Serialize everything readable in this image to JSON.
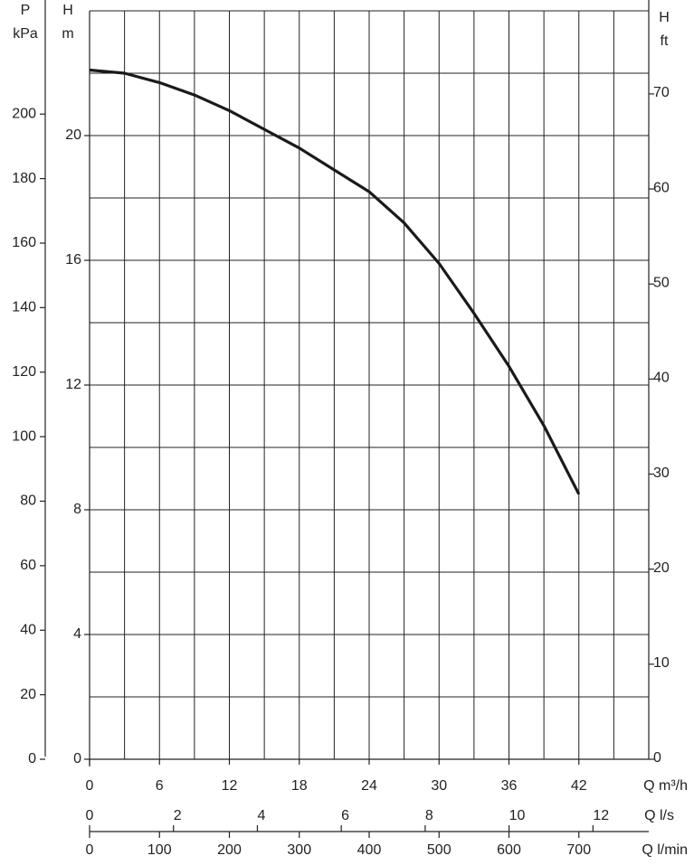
{
  "chart_data": {
    "type": "line",
    "x": [
      0,
      3,
      6,
      9,
      12,
      15,
      18,
      21,
      24,
      27,
      30,
      33,
      36,
      39,
      42
    ],
    "values": [
      22.1,
      22.0,
      21.7,
      21.3,
      20.8,
      20.2,
      19.6,
      18.9,
      18.2,
      17.2,
      15.9,
      14.3,
      12.6,
      10.7,
      8.5
    ],
    "color": "#1a1a1a",
    "xlabel": "Q m³/h",
    "xlim": [
      0,
      48
    ],
    "xticks": [
      0,
      6,
      12,
      18,
      24,
      30,
      36,
      42
    ],
    "xgrid": [
      3,
      6,
      9,
      12,
      15,
      18,
      21,
      24,
      27,
      30,
      33,
      36,
      39,
      42,
      45,
      48
    ],
    "x2label": "Q l/s",
    "x2lim": [
      0,
      13.33
    ],
    "x2ticks": [
      0,
      2,
      4,
      6,
      8,
      10,
      12
    ],
    "x3label": "Q l/min",
    "x3lim": [
      0,
      800
    ],
    "x3ticks": [
      0,
      100,
      200,
      300,
      400,
      500,
      600,
      700
    ],
    "ylabel": [
      "H",
      "m"
    ],
    "ylim": [
      0,
      24
    ],
    "yticks": [
      0,
      4,
      8,
      12,
      16,
      20
    ],
    "ygrid": [
      2,
      4,
      6,
      8,
      10,
      12,
      14,
      16,
      18,
      20,
      22,
      24
    ],
    "y2label": [
      "H",
      "ft"
    ],
    "y2lim": [
      0,
      78.74
    ],
    "y2ticks": [
      0,
      10,
      20,
      30,
      40,
      50,
      60,
      70
    ],
    "y3label": [
      "P",
      "kPa"
    ],
    "y3lim": [
      0,
      232
    ],
    "y3ticks": [
      0,
      20,
      40,
      60,
      80,
      100,
      120,
      140,
      160,
      180,
      200
    ]
  }
}
